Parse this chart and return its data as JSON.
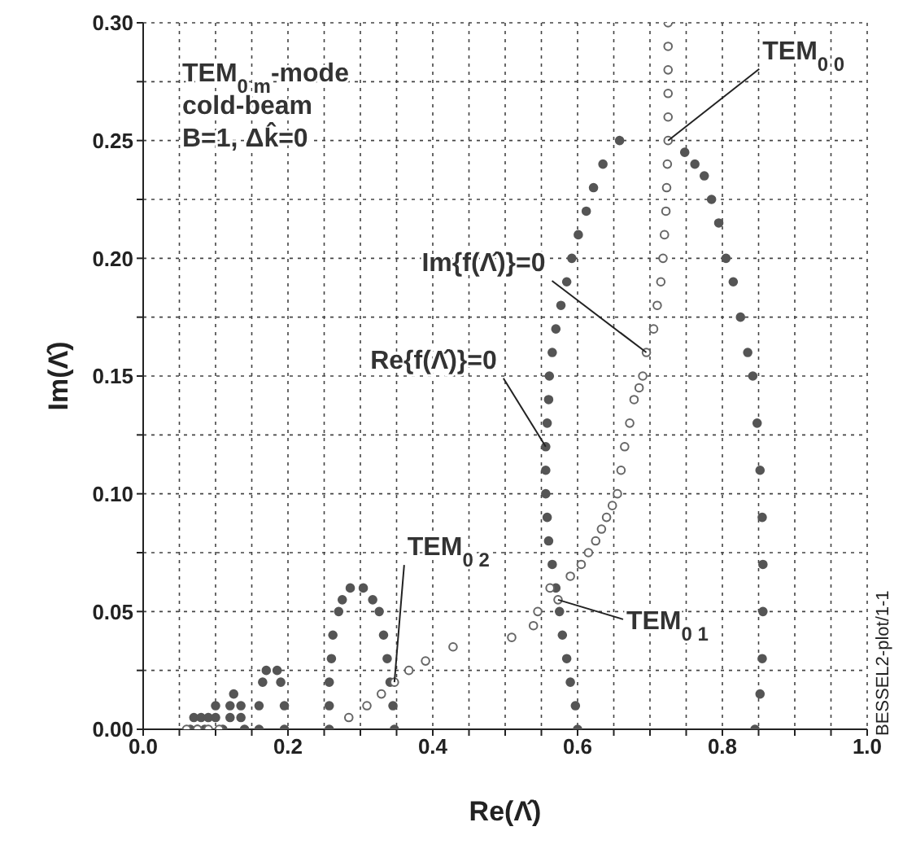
{
  "chart_data": {
    "type": "scatter",
    "xlabel": "Re(Λ̂)",
    "ylabel": "Im(Λ̂)",
    "xlim": [
      0,
      1
    ],
    "ylim": [
      0,
      0.3
    ],
    "xticks": [
      {
        "value": 0,
        "label": "0.0"
      },
      {
        "value": 0.05,
        "label": null
      },
      {
        "value": 0.1,
        "label": null
      },
      {
        "value": 0.15,
        "label": null
      },
      {
        "value": 0.2,
        "label": "0.2"
      },
      {
        "value": 0.25,
        "label": null
      },
      {
        "value": 0.3,
        "label": null
      },
      {
        "value": 0.35,
        "label": null
      },
      {
        "value": 0.4,
        "label": "0.4"
      },
      {
        "value": 0.45,
        "label": null
      },
      {
        "value": 0.5,
        "label": null
      },
      {
        "value": 0.55,
        "label": null
      },
      {
        "value": 0.6,
        "label": "0.6"
      },
      {
        "value": 0.65,
        "label": null
      },
      {
        "value": 0.7,
        "label": null
      },
      {
        "value": 0.75,
        "label": null
      },
      {
        "value": 0.8,
        "label": "0.8"
      },
      {
        "value": 0.85,
        "label": null
      },
      {
        "value": 0.9,
        "label": null
      },
      {
        "value": 0.95,
        "label": null
      },
      {
        "value": 1,
        "label": "1.0"
      }
    ],
    "yticks": [
      {
        "value": 0,
        "label": "0.00"
      },
      {
        "value": 0.025,
        "label": null
      },
      {
        "value": 0.05,
        "label": "0.05"
      },
      {
        "value": 0.075,
        "label": null
      },
      {
        "value": 0.1,
        "label": "0.10"
      },
      {
        "value": 0.125,
        "label": null
      },
      {
        "value": 0.15,
        "label": "0.15"
      },
      {
        "value": 0.175,
        "label": null
      },
      {
        "value": 0.2,
        "label": "0.20"
      },
      {
        "value": 0.225,
        "label": null
      },
      {
        "value": 0.25,
        "label": "0.25"
      },
      {
        "value": 0.275,
        "label": null
      },
      {
        "value": 0.3,
        "label": "0.30"
      }
    ],
    "grid": true,
    "marker": "circle",
    "series": [
      {
        "color": "#555555",
        "x": [
          0.065,
          0.075,
          0.085,
          0.07,
          0.08,
          0.09,
          0.1,
          0.1,
          0.11,
          0.12,
          0.125,
          0.12,
          0.135,
          0.135,
          0.14,
          0.16,
          0.16,
          0.165,
          0.17,
          0.185,
          0.19,
          0.195,
          0.195,
          0.257,
          0.257,
          0.257,
          0.26,
          0.262,
          0.27,
          0.275,
          0.286,
          0.304,
          0.317,
          0.326,
          0.332,
          0.337,
          0.341,
          0.345,
          0.347,
          0.6,
          0.597,
          0.59,
          0.585,
          0.579,
          0.575,
          0.57,
          0.565,
          0.56,
          0.558,
          0.556,
          0.556,
          0.556,
          0.558,
          0.56,
          0.561,
          0.565,
          0.57,
          0.577,
          0.585,
          0.592,
          0.601,
          0.612,
          0.622,
          0.635,
          0.658,
          0.748,
          0.762,
          0.775,
          0.785,
          0.795,
          0.805,
          0.815,
          0.825,
          0.835,
          0.842,
          0.848,
          0.852,
          0.855,
          0.856,
          0.856,
          0.855,
          0.852,
          0.845
        ],
        "values": [
          0,
          0,
          0,
          0.005,
          0.005,
          0.005,
          0.01,
          0.005,
          0,
          0.01,
          0.015,
          0.005,
          0.01,
          0.005,
          0,
          0,
          0.01,
          0.02,
          0.025,
          0.025,
          0.02,
          0.01,
          0,
          0,
          0.01,
          0.02,
          0.03,
          0.04,
          0.05,
          0.055,
          0.06,
          0.06,
          0.055,
          0.05,
          0.04,
          0.03,
          0.02,
          0.01,
          0,
          0,
          0.01,
          0.02,
          0.03,
          0.04,
          0.05,
          0.06,
          0.07,
          0.08,
          0.09,
          0.1,
          0.11,
          0.12,
          0.13,
          0.14,
          0.15,
          0.16,
          0.17,
          0.18,
          0.19,
          0.2,
          0.21,
          0.22,
          0.23,
          0.24,
          0.25,
          0.245,
          0.24,
          0.235,
          0.225,
          0.215,
          0.2,
          0.19,
          0.175,
          0.16,
          0.15,
          0.13,
          0.11,
          0.09,
          0.07,
          0.05,
          0.03,
          0.015,
          0
        ]
      },
      {
        "type": "scatter",
        "color": "#666666",
        "x": [
          0.06,
          0.075,
          0.09,
          0.105,
          0.284,
          0.309,
          0.329,
          0.347,
          0.367,
          0.39,
          0.428,
          0.509,
          0.539,
          0.545,
          0.562,
          0.573,
          0.59,
          0.605,
          0.615,
          0.625,
          0.633,
          0.64,
          0.648,
          0.655,
          0.66,
          0.665,
          0.672,
          0.678,
          0.685,
          0.69,
          0.695,
          0.705,
          0.71,
          0.715,
          0.718,
          0.72,
          0.722,
          0.723,
          0.724,
          0.725,
          0.725,
          0.725,
          0.725,
          0.725,
          0.725
        ],
        "values": [
          0,
          0,
          0,
          0,
          0.005,
          0.01,
          0.015,
          0.02,
          0.025,
          0.029,
          0.035,
          0.039,
          0.044,
          0.05,
          0.06,
          0.055,
          0.065,
          0.07,
          0.075,
          0.08,
          0.085,
          0.09,
          0.095,
          0.1,
          0.11,
          0.12,
          0.13,
          0.14,
          0.145,
          0.15,
          0.16,
          0.17,
          0.18,
          0.19,
          0.2,
          0.21,
          0.22,
          0.23,
          0.24,
          0.25,
          0.26,
          0.27,
          0.28,
          0.29,
          0.3
        ]
      }
    ],
    "annotations": [
      "TEM$_{0 m}$-mode",
      "cold-beam",
      "B=1, Δk̂=0",
      {
        "text": "TEM$_{0 0}$",
        "x": 0.725,
        "y": 0.25
      },
      {
        "text": "Im{f(Λ̂)}=0",
        "x": 0.695,
        "y": 0.16
      },
      {
        "text": "Re{f(Λ̂)}=0",
        "x": 0.556,
        "y": 0.12
      },
      {
        "text": "TEM$_{0 2}$",
        "x": 0.347,
        "y": 0.02
      },
      {
        "text": "TEM$_{0 1}$",
        "x": 0.573,
        "y": 0.055
      },
      "BESSEL2-plot/1-1"
    ]
  }
}
